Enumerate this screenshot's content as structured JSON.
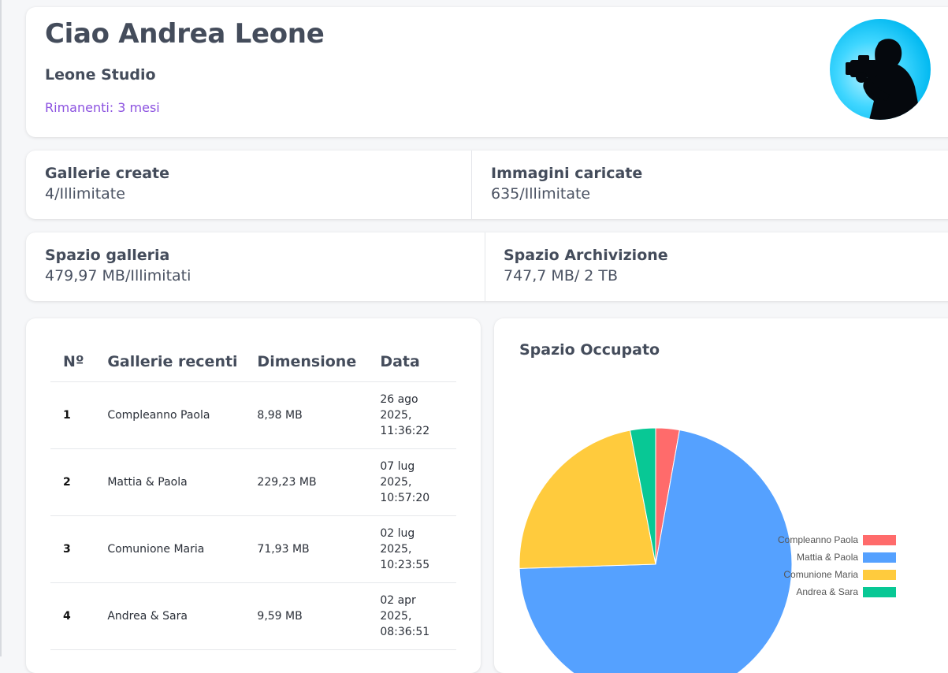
{
  "header": {
    "greeting": "Ciao Andrea Leone",
    "studio": "Leone Studio",
    "remaining": "Rimanenti: 3 mesi"
  },
  "stats": [
    {
      "label": "Gallerie create",
      "value": "4/Illimitate"
    },
    {
      "label": "Immagini caricate",
      "value": "635/Illimitate"
    },
    {
      "label": "Spazio galleria",
      "value": "479,97 MB/Illimitati"
    },
    {
      "label": "Spazio Archivizione",
      "value": "747,7 MB/ 2 TB"
    }
  ],
  "table": {
    "headers": [
      "Nº",
      "Gallerie recenti",
      "Dimensione",
      "Data"
    ],
    "rows": [
      {
        "num": "1",
        "name": "Compleanno Paola",
        "size": "8,98 MB",
        "date": "26 ago 2025, 11:36:22"
      },
      {
        "num": "2",
        "name": "Mattia & Paola",
        "size": "229,23 MB",
        "date": "07 lug 2025, 10:57:20"
      },
      {
        "num": "3",
        "name": "Comunione Maria",
        "size": "71,93 MB",
        "date": "02 lug 2025, 10:23:55"
      },
      {
        "num": "4",
        "name": "Andrea & Sara",
        "size": "9,59 MB",
        "date": "02 apr 2025, 08:36:51"
      }
    ]
  },
  "chart_data": {
    "type": "pie",
    "title": "Spazio Occupato",
    "categories": [
      "Compleanno Paola",
      "Mattia & Paola",
      "Comunione Maria",
      "Andrea & Sara"
    ],
    "values": [
      8.98,
      229.23,
      71.93,
      9.59
    ],
    "colors": [
      "#ff6b6b",
      "#55a1ff",
      "#ffcb3d",
      "#08c895"
    ],
    "legend": "right"
  }
}
